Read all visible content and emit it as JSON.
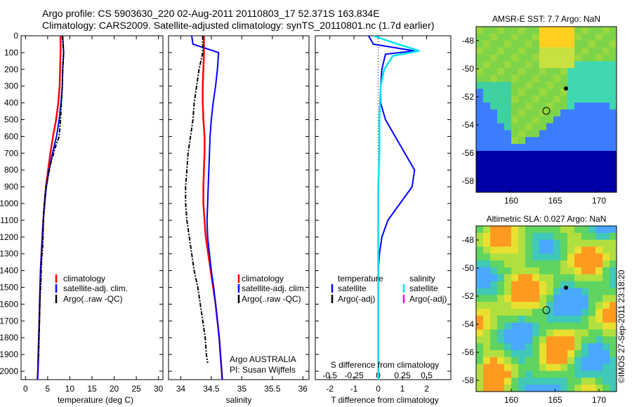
{
  "header": {
    "line1": "Argo profile: CS 5903630_220 02-Aug-2011 20110803_17 52.371S 163.834E",
    "line2": "Climatology: CARS2009. Satellite-adjusted climatology: synTS_20110801.nc (1.7d earlier)"
  },
  "colors": {
    "climatology": "#ff0000",
    "satellite": "#0000ff",
    "argo": "#000000",
    "salinity_satellite": "#00e5ee",
    "salinity_argo": "#ff00ff"
  },
  "chart_data": [
    {
      "type": "line",
      "panel": "temperature",
      "xlabel": "temperature (deg C)",
      "ylim": [
        2050,
        0
      ],
      "xlim": [
        -1,
        31
      ],
      "xticks": [
        "0",
        "5",
        "10",
        "15",
        "20",
        "25",
        "30"
      ],
      "yticks": [
        "0",
        "100",
        "200",
        "300",
        "400",
        "500",
        "600",
        "700",
        "800",
        "900",
        "1000",
        "1100",
        "1200",
        "1300",
        "1400",
        "1500",
        "1600",
        "1700",
        "1800",
        "1900",
        "2000"
      ],
      "legend": [
        "climatology",
        "satellite-adj. clim.",
        "Argo(..raw -QC)"
      ],
      "series": [
        {
          "name": "climatology",
          "values": [
            [
              7.9,
              0
            ],
            [
              7.9,
              100
            ],
            [
              7.8,
              200
            ],
            [
              7.7,
              300
            ],
            [
              7.4,
              400
            ],
            [
              6.9,
              500
            ],
            [
              6.2,
              600
            ],
            [
              5.6,
              700
            ],
            [
              5.1,
              800
            ],
            [
              4.6,
              900
            ],
            [
              4.3,
              1000
            ],
            [
              4.0,
              1100
            ],
            [
              3.8,
              1200
            ],
            [
              3.6,
              1300
            ],
            [
              3.4,
              1400
            ],
            [
              3.3,
              1500
            ],
            [
              3.2,
              1600
            ],
            [
              3.1,
              1700
            ],
            [
              3.0,
              1800
            ],
            [
              2.9,
              1900
            ],
            [
              2.8,
              2000
            ],
            [
              2.7,
              2050
            ]
          ]
        },
        {
          "name": "satellite-adj. clim.",
          "values": [
            [
              8.4,
              0
            ],
            [
              8.6,
              100
            ],
            [
              8.4,
              200
            ],
            [
              8.3,
              300
            ],
            [
              8.0,
              400
            ],
            [
              7.6,
              500
            ],
            [
              7.0,
              600
            ],
            [
              6.1,
              700
            ],
            [
              5.3,
              800
            ],
            [
              4.7,
              900
            ],
            [
              4.3,
              1000
            ],
            [
              4.0,
              1100
            ],
            [
              3.8,
              1200
            ],
            [
              3.6,
              1300
            ],
            [
              3.4,
              1400
            ],
            [
              3.3,
              1500
            ],
            [
              3.2,
              1600
            ],
            [
              3.1,
              1700
            ],
            [
              3.0,
              1800
            ],
            [
              2.9,
              1900
            ],
            [
              2.8,
              2000
            ],
            [
              2.7,
              2050
            ]
          ]
        },
        {
          "name": "Argo(..raw -QC)",
          "values": [
            [
              8.3,
              0
            ],
            [
              8.6,
              100
            ],
            [
              8.4,
              200
            ],
            [
              8.3,
              300
            ],
            [
              8.1,
              400
            ],
            [
              7.9,
              500
            ],
            [
              7.6,
              600
            ],
            [
              6.9,
              650
            ],
            [
              5.8,
              750
            ],
            [
              5.0,
              850
            ],
            [
              4.4,
              950
            ],
            [
              4.1,
              1050
            ],
            [
              4.0,
              1150
            ],
            [
              3.9,
              1250
            ],
            [
              3.6,
              1350
            ],
            [
              3.5,
              1450
            ],
            [
              3.3,
              1550
            ],
            [
              3.2,
              1650
            ],
            [
              3.1,
              1750
            ],
            [
              3.0,
              1850
            ],
            [
              2.9,
              1950
            ]
          ]
        }
      ]
    },
    {
      "type": "line",
      "panel": "salinity",
      "xlabel": "salinity",
      "ylim": [
        2050,
        0
      ],
      "xlim": [
        33.8,
        36.1
      ],
      "xticks": [
        "34",
        "34.5",
        "35",
        "35.5",
        "36"
      ],
      "legend": [
        "climatology",
        "satellite-adj. clim.",
        "Argo(..raw -QC)"
      ],
      "annotation": [
        "Argo AUSTRALIA",
        "PI: Susan Wijffels"
      ],
      "series": [
        {
          "name": "climatology",
          "values": [
            [
              34.38,
              0
            ],
            [
              34.38,
              100
            ],
            [
              34.37,
              200
            ],
            [
              34.36,
              300
            ],
            [
              34.36,
              400
            ],
            [
              34.37,
              500
            ],
            [
              34.39,
              600
            ],
            [
              34.39,
              700
            ],
            [
              34.38,
              800
            ],
            [
              34.37,
              900
            ],
            [
              34.37,
              1000
            ],
            [
              34.39,
              1100
            ],
            [
              34.41,
              1200
            ],
            [
              34.45,
              1300
            ],
            [
              34.49,
              1400
            ],
            [
              34.53,
              1500
            ],
            [
              34.57,
              1600
            ],
            [
              34.6,
              1700
            ],
            [
              34.63,
              1800
            ],
            [
              34.65,
              1900
            ],
            [
              34.67,
              2000
            ],
            [
              34.68,
              2050
            ]
          ]
        },
        {
          "name": "satellite-adj. clim.",
          "values": [
            [
              34.18,
              0
            ],
            [
              34.2,
              50
            ],
            [
              34.62,
              100
            ],
            [
              34.6,
              200
            ],
            [
              34.57,
              300
            ],
            [
              34.53,
              400
            ],
            [
              34.5,
              500
            ],
            [
              34.48,
              600
            ],
            [
              34.47,
              700
            ],
            [
              34.46,
              800
            ],
            [
              34.45,
              900
            ],
            [
              34.44,
              1000
            ],
            [
              34.43,
              1100
            ],
            [
              34.44,
              1200
            ],
            [
              34.47,
              1300
            ],
            [
              34.5,
              1400
            ],
            [
              34.54,
              1500
            ],
            [
              34.57,
              1600
            ],
            [
              34.6,
              1700
            ],
            [
              34.63,
              1800
            ],
            [
              34.65,
              1900
            ],
            [
              34.67,
              2000
            ],
            [
              34.68,
              2050
            ]
          ]
        },
        {
          "name": "Argo(..raw -QC)",
          "values": [
            [
              34.36,
              0
            ],
            [
              34.36,
              100
            ],
            [
              34.3,
              200
            ],
            [
              34.26,
              300
            ],
            [
              34.22,
              400
            ],
            [
              34.2,
              500
            ],
            [
              34.16,
              600
            ],
            [
              34.12,
              700
            ],
            [
              34.1,
              800
            ],
            [
              34.08,
              900
            ],
            [
              34.08,
              1000
            ],
            [
              34.1,
              1100
            ],
            [
              34.14,
              1200
            ],
            [
              34.18,
              1300
            ],
            [
              34.22,
              1400
            ],
            [
              34.28,
              1500
            ],
            [
              34.32,
              1600
            ],
            [
              34.36,
              1700
            ],
            [
              34.4,
              1800
            ],
            [
              34.42,
              1900
            ],
            [
              34.44,
              1950
            ]
          ]
        }
      ]
    },
    {
      "type": "line",
      "panel": "difference",
      "xlabel": "T difference from climatology",
      "x2label": "S difference from climatology",
      "ylim": [
        2050,
        0
      ],
      "xlim": [
        -2.6,
        3.0
      ],
      "xticks": [
        "-2",
        "-1",
        "0",
        "1",
        "2"
      ],
      "x2ticks": [
        "-0.5",
        "-0.25",
        "0",
        "0.25",
        "0.5"
      ],
      "legend_headers": [
        "temperature",
        "salinity"
      ],
      "legend": [
        "satellite",
        "Argo(-adj)",
        "satellite",
        "Argo(-adj)"
      ],
      "series": [
        {
          "name": "temperature satellite",
          "values": [
            [
              -0.4,
              0
            ],
            [
              -0.2,
              50
            ],
            [
              1.5,
              90
            ],
            [
              0.3,
              110
            ],
            [
              0.15,
              200
            ],
            [
              0.1,
              300
            ],
            [
              0.1,
              400
            ],
            [
              0.3,
              500
            ],
            [
              0.7,
              600
            ],
            [
              1.1,
              700
            ],
            [
              1.5,
              800
            ],
            [
              1.4,
              900
            ],
            [
              0.9,
              1000
            ],
            [
              0.4,
              1100
            ],
            [
              0.15,
              1200
            ],
            [
              0.05,
              1300
            ],
            [
              0,
              1400
            ],
            [
              0,
              2050
            ]
          ]
        },
        {
          "name": "salinity satellite",
          "values": [
            [
              -0.2,
              0
            ],
            [
              0.6,
              40
            ],
            [
              1.7,
              90
            ],
            [
              0.6,
              120
            ],
            [
              0.25,
              200
            ],
            [
              0.1,
              300
            ],
            [
              0.05,
              500
            ],
            [
              0.05,
              700
            ],
            [
              0.0,
              900
            ],
            [
              0.0,
              1100
            ],
            [
              0,
              1300
            ],
            [
              0,
              2050
            ]
          ]
        }
      ]
    },
    {
      "type": "heatmap",
      "panel": "sst-map",
      "title": "AMSR-E SST: 7.7 Argo: NaN",
      "xticks": [
        "160",
        "165",
        "170"
      ],
      "yticks": [
        "-48",
        "-50",
        "-52",
        "-54",
        "-56",
        "-58"
      ]
    },
    {
      "type": "heatmap",
      "panel": "sla-map",
      "title": "Altimetric SLA: 0.027 Argo: NaN",
      "xticks": [
        "160",
        "165",
        "170"
      ],
      "yticks": [
        "-48",
        "-50",
        "-52",
        "-54",
        "-56",
        "-58"
      ],
      "side_label": "©IMOS 27-Sep-2011 23:18:20"
    }
  ]
}
